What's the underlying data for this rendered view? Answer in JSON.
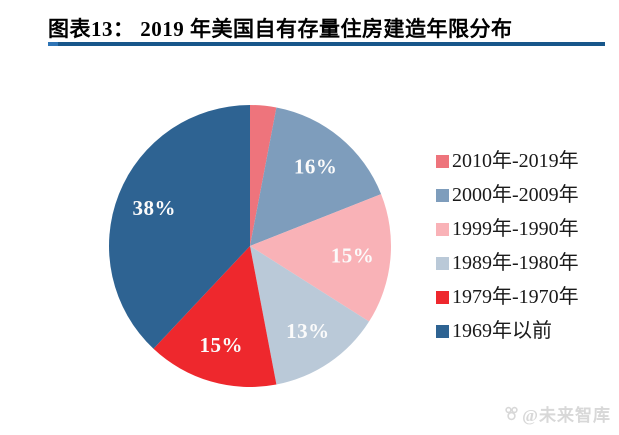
{
  "header": {
    "title": "图表13：  2019 年美国自有存量住房建造年限分布",
    "rule_color_main": "#17568a",
    "rule_color_cap": "#2e74b5"
  },
  "chart_data": {
    "type": "pie",
    "title": "2019 年美国自有存量住房建造年限分布",
    "start_angle": "top",
    "direction": "clockwise",
    "legend_position": "right",
    "percent_label_color": "#fbfbfb",
    "slices": [
      {
        "label": "2010年-2019年",
        "value": 3,
        "percent_label": "",
        "color": "#ee747c"
      },
      {
        "label": "2000年-2009年",
        "value": 16,
        "percent_label": "16%",
        "color": "#7e9dbc"
      },
      {
        "label": "1999年-1990年",
        "value": 15,
        "percent_label": "15%",
        "color": "#f9b2b7"
      },
      {
        "label": "1989年-1980年",
        "value": 13,
        "percent_label": "13%",
        "color": "#bac9d8"
      },
      {
        "label": "1979年-1970年",
        "value": 15,
        "percent_label": "15%",
        "color": "#ee282d"
      },
      {
        "label": "1969年以前",
        "value": 38,
        "percent_label": "38%",
        "color": "#2e6392"
      }
    ]
  },
  "watermark": {
    "text": "@未来智库",
    "icon": "brand-logo-icon",
    "color": "#d8d8d8"
  }
}
